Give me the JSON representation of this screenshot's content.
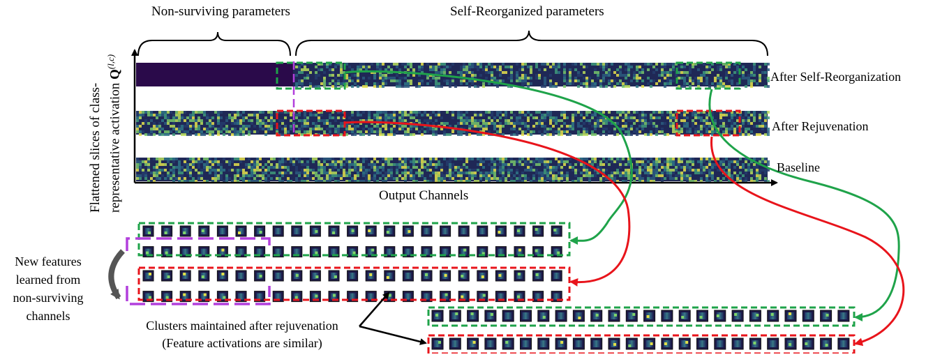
{
  "brackets": {
    "non_surviving": "Non-surviving parameters",
    "self_reorganized": "Self-Reorganized parameters"
  },
  "axes": {
    "x_label": "Output Channels",
    "y_label_line1": "Flattened slices of class-",
    "y_label_line2": "representative activation",
    "y_symbol": "Q",
    "y_superscript": "(l,c)"
  },
  "rows": {
    "after_self_reorg": "After Self-Reorganization",
    "after_rejuvenation": "After Rejuvenation",
    "baseline": "Baseline"
  },
  "annotations": {
    "new_features_line1": "New features",
    "new_features_line2": "learned from",
    "new_features_line3": "non-surviving",
    "new_features_line4": "channels",
    "clusters_line1": "Clusters maintained after rejuvenation",
    "clusters_line2": "(Feature activations are similar)"
  },
  "colors": {
    "green": "#1fa34a",
    "red": "#e8141b",
    "purple": "#b23fdc",
    "dark": "#2a0a4a",
    "heat_dark": "#1f1b4d",
    "heat_mid": "#2b6d8e",
    "heat_bright": "#7fd36a",
    "arrow_gray": "#555555"
  }
}
